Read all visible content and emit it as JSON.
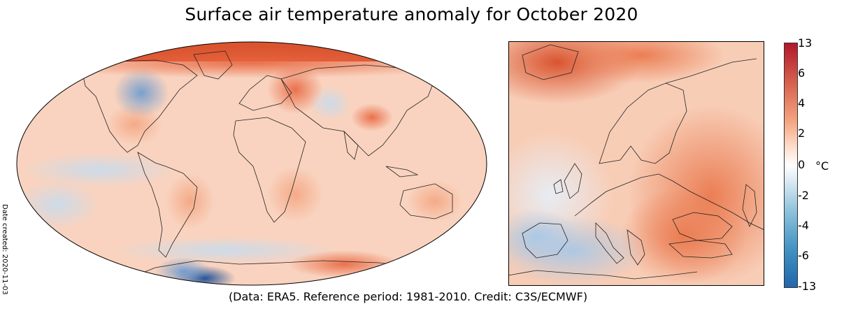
{
  "title": "Surface air temperature anomaly for October 2020",
  "credit": "(Data: ERA5.  Reference period: 1981-2010.  Credit: C3S/ECMWF)",
  "date_created": "Date created: 2020-11-03",
  "colorbar": {
    "ticks": [
      "13",
      "6",
      "4",
      "2",
      "0",
      "-2",
      "-4",
      "-6",
      "-13"
    ],
    "unit": "°C"
  }
}
